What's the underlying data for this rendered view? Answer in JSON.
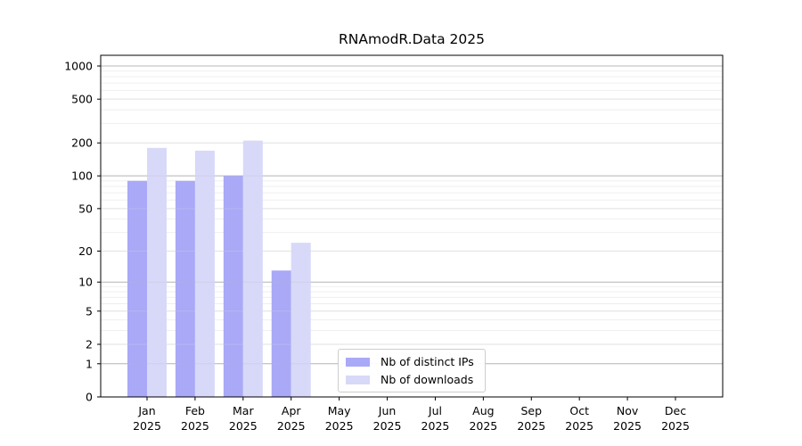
{
  "chart_data": {
    "type": "bar",
    "title": "RNAmodR.Data 2025",
    "xlabel": "",
    "ylabel": "",
    "categories": [
      "Jan",
      "Feb",
      "Mar",
      "Apr",
      "May",
      "Jun",
      "Jul",
      "Aug",
      "Sep",
      "Oct",
      "Nov",
      "Dec"
    ],
    "x_tick_second_line": "2025",
    "series": [
      {
        "name": "Nb of distinct IPs",
        "color": "#a9a9f7",
        "values": [
          90,
          90,
          100,
          13,
          null,
          null,
          null,
          null,
          null,
          null,
          null,
          null
        ]
      },
      {
        "name": "Nb of downloads",
        "color": "#d8d8f9",
        "values": [
          180,
          170,
          210,
          24,
          null,
          null,
          null,
          null,
          null,
          null,
          null,
          null
        ]
      }
    ],
    "y_ticks": [
      0,
      1,
      2,
      5,
      10,
      20,
      50,
      100,
      200,
      500,
      1000
    ],
    "y_scale": "log1p",
    "y_max_tick": 1000,
    "grid": true,
    "legend_position": "bottom-center"
  },
  "colors": {
    "background": "#ffffff",
    "axis": "#000000",
    "grid_major": "#b8b8b8",
    "grid_mid": "#e2e2e2",
    "grid_minor": "#efefef",
    "legend_border": "#cdcdcd"
  }
}
